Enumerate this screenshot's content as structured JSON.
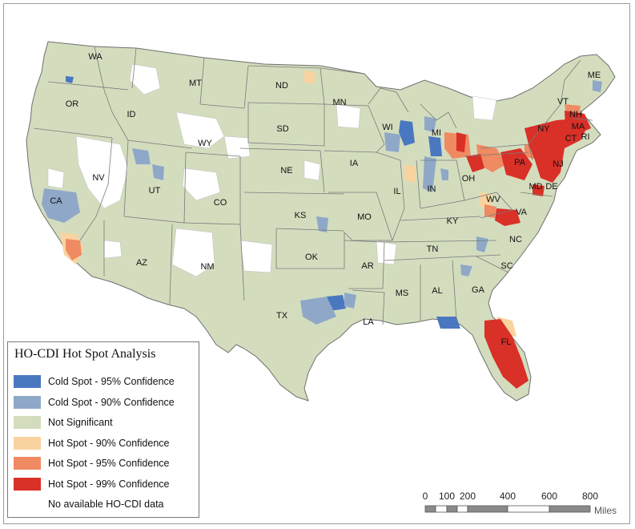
{
  "colors": {
    "cold95": "#4a78c0",
    "cold90": "#8fa8c8",
    "ns": "#d3ddbe",
    "hot90": "#f8d3a0",
    "hot95": "#ef8a62",
    "hot99": "#d93028",
    "nodata": "#ffffff",
    "border": "#6f6f6f"
  },
  "legend": {
    "title": "HO-CDI Hot Spot Analysis",
    "items": [
      {
        "label": "Cold Spot - 95% Confidence",
        "color": "#4a78c0"
      },
      {
        "label": "Cold Spot - 90% Confidence",
        "color": "#8fa8c8"
      },
      {
        "label": "Not Significant",
        "color": "#d3ddbe"
      },
      {
        "label": "Hot Spot - 90% Confidence",
        "color": "#f8d3a0"
      },
      {
        "label": "Hot Spot - 95% Confidence",
        "color": "#ef8a62"
      },
      {
        "label": "Hot Spot - 99% Confidence",
        "color": "#d93028"
      },
      {
        "label": "No available HO-CDI data",
        "color": "#ffffff"
      }
    ]
  },
  "scale": {
    "ticks": [
      "0",
      "100",
      "200",
      "400",
      "600",
      "800"
    ],
    "unit": "Miles"
  },
  "states": [
    {
      "abbr": "WA"
    },
    {
      "abbr": "OR"
    },
    {
      "abbr": "CA"
    },
    {
      "abbr": "NV"
    },
    {
      "abbr": "ID"
    },
    {
      "abbr": "MT"
    },
    {
      "abbr": "WY"
    },
    {
      "abbr": "UT"
    },
    {
      "abbr": "AZ"
    },
    {
      "abbr": "CO"
    },
    {
      "abbr": "NM"
    },
    {
      "abbr": "ND"
    },
    {
      "abbr": "SD"
    },
    {
      "abbr": "NE"
    },
    {
      "abbr": "KS"
    },
    {
      "abbr": "OK"
    },
    {
      "abbr": "TX"
    },
    {
      "abbr": "MN"
    },
    {
      "abbr": "IA"
    },
    {
      "abbr": "MO"
    },
    {
      "abbr": "AR"
    },
    {
      "abbr": "LA"
    },
    {
      "abbr": "WI"
    },
    {
      "abbr": "IL"
    },
    {
      "abbr": "MI"
    },
    {
      "abbr": "IN"
    },
    {
      "abbr": "OH"
    },
    {
      "abbr": "KY"
    },
    {
      "abbr": "TN"
    },
    {
      "abbr": "MS"
    },
    {
      "abbr": "AL"
    },
    {
      "abbr": "GA"
    },
    {
      "abbr": "FL"
    },
    {
      "abbr": "SC"
    },
    {
      "abbr": "NC"
    },
    {
      "abbr": "VA"
    },
    {
      "abbr": "WV"
    },
    {
      "abbr": "PA"
    },
    {
      "abbr": "NY"
    },
    {
      "abbr": "VT"
    },
    {
      "abbr": "NH"
    },
    {
      "abbr": "ME"
    },
    {
      "abbr": "MA"
    },
    {
      "abbr": "CT"
    },
    {
      "abbr": "RI"
    },
    {
      "abbr": "NJ"
    },
    {
      "abbr": "MD"
    },
    {
      "abbr": "DE"
    }
  ]
}
